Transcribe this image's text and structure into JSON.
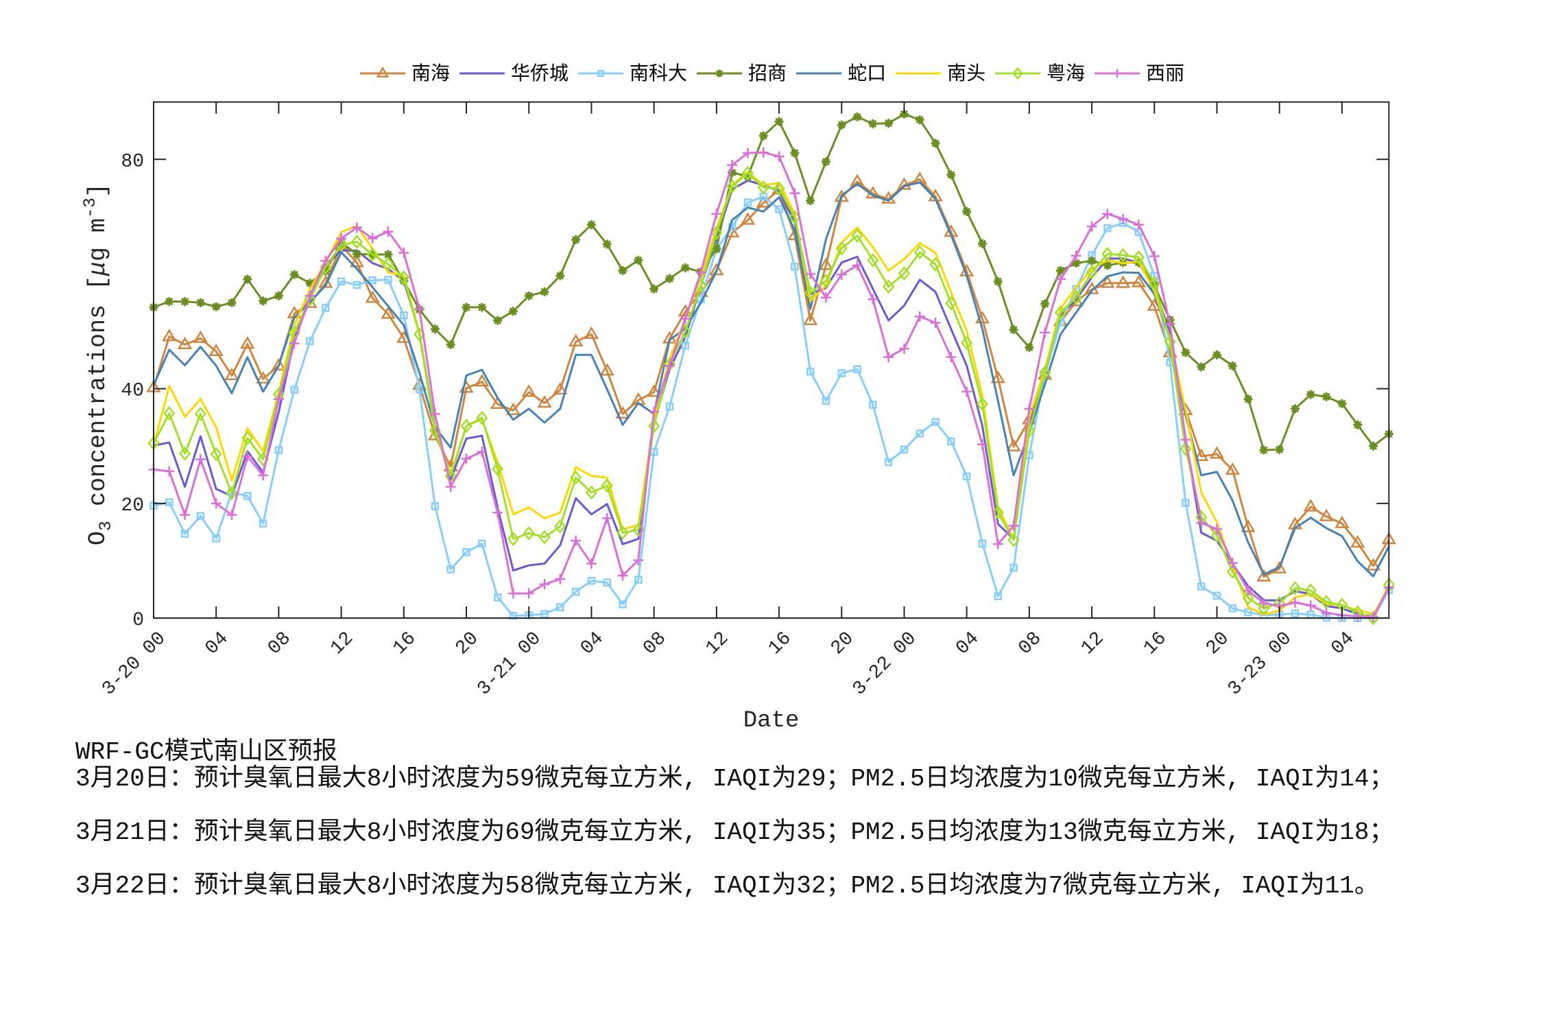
{
  "chart_data": {
    "type": "line",
    "title": "",
    "xlabel": "Date",
    "ylabel": "O3 concentrations [μg m-3]",
    "ylabel_parts": {
      "base": "O",
      "sub": "3",
      "mid": " concentrations [",
      "mu": "μ",
      "unit": "g m",
      "sup": "-3",
      "end": "]"
    },
    "xlim": [
      0,
      79
    ],
    "ylim": [
      0,
      90
    ],
    "grid": false,
    "legend_position": "top, horizontal, outside plot",
    "axis_color": "#262626",
    "xticks": {
      "positions_hours": [
        0,
        4,
        8,
        12,
        16,
        20,
        24,
        28,
        32,
        36,
        40,
        44,
        48,
        52,
        56,
        60,
        64,
        68,
        72,
        76
      ],
      "labels": [
        "3-20 00",
        "04",
        "08",
        "12",
        "16",
        "20",
        "3-21 00",
        "04",
        "08",
        "12",
        "16",
        "20",
        "3-22 00",
        "04",
        "08",
        "12",
        "16",
        "20",
        "3-23 00",
        "04"
      ]
    },
    "yticks": {
      "values": [
        0,
        20,
        40,
        80
      ],
      "labels": [
        "0",
        "20",
        "40",
        "80"
      ]
    },
    "x_hours": [
      0,
      1,
      2,
      3,
      4,
      5,
      6,
      7,
      8,
      9,
      10,
      11,
      12,
      13,
      14,
      15,
      16,
      17,
      18,
      19,
      20,
      21,
      22,
      23,
      24,
      25,
      26,
      27,
      28,
      29,
      30,
      31,
      32,
      33,
      34,
      35,
      36,
      37,
      38,
      39,
      40,
      41,
      42,
      43,
      44,
      45,
      46,
      47,
      48,
      49,
      50,
      51,
      52,
      53,
      54,
      55,
      56,
      57,
      58,
      59,
      60,
      61,
      62,
      63,
      64,
      65,
      66,
      67,
      68,
      69,
      70,
      71,
      72,
      73,
      74,
      75,
      76,
      77,
      78,
      79
    ],
    "x": [
      "3-20 00",
      "3-20 01",
      "3-20 02",
      "3-20 03",
      "3-20 04",
      "3-20 05",
      "3-20 06",
      "3-20 07",
      "3-20 08",
      "3-20 09",
      "3-20 10",
      "3-20 11",
      "3-20 12",
      "3-20 13",
      "3-20 14",
      "3-20 15",
      "3-20 16",
      "3-20 17",
      "3-20 18",
      "3-20 19",
      "3-20 20",
      "3-20 21",
      "3-20 22",
      "3-20 23",
      "3-21 00",
      "3-21 01",
      "3-21 02",
      "3-21 03",
      "3-21 04",
      "3-21 05",
      "3-21 06",
      "3-21 07",
      "3-21 08",
      "3-21 09",
      "3-21 10",
      "3-21 11",
      "3-21 12",
      "3-21 13",
      "3-21 14",
      "3-21 15",
      "3-21 16",
      "3-21 17",
      "3-21 18",
      "3-21 19",
      "3-21 20",
      "3-21 21",
      "3-21 22",
      "3-21 23",
      "3-22 00",
      "3-22 01",
      "3-22 02",
      "3-22 03",
      "3-22 04",
      "3-22 05",
      "3-22 06",
      "3-22 07",
      "3-22 08",
      "3-22 09",
      "3-22 10",
      "3-22 11",
      "3-22 12",
      "3-22 13",
      "3-22 14",
      "3-22 15",
      "3-22 16",
      "3-22 17",
      "3-22 18",
      "3-22 19",
      "3-22 20",
      "3-22 21",
      "3-22 22",
      "3-22 23",
      "3-23 00",
      "3-23 01",
      "3-23 02",
      "3-23 03",
      "3-23 04",
      "3-23 05",
      "3-23 06",
      "3-23 07"
    ],
    "series": [
      {
        "id": "nanhai",
        "name": "南海",
        "color": "#CD853F",
        "marker": "triangle",
        "values": [
          40.2,
          49.1,
          47.7,
          48.8,
          46.5,
          42.3,
          47.8,
          41.7,
          44.0,
          53.1,
          54.9,
          58.4,
          65.0,
          62.0,
          55.8,
          53.0,
          48.8,
          40.6,
          31.8,
          26.4,
          40.1,
          41.2,
          37.3,
          36.2,
          39.4,
          37.5,
          39.8,
          48.2,
          49.5,
          43.1,
          35.6,
          38.0,
          39.4,
          48.7,
          53.4,
          56.8,
          60.6,
          67.2,
          69.4,
          72.4,
          74.7,
          66.7,
          51.9,
          61.5,
          73.4,
          76.1,
          74.0,
          73.1,
          75.5,
          76.5,
          73.5,
          67.3,
          60.4,
          52.2,
          41.8,
          29.9,
          34.6,
          42.4,
          51.7,
          55.2,
          57.3,
          58.4,
          58.4,
          58.5,
          54.4,
          46.3,
          36.2,
          28.2,
          28.6,
          25.8,
          15.8,
          7.2,
          8.6,
          16.3,
          19.4,
          17.7,
          16.5,
          13.1,
          9.1,
          13.7
        ]
      },
      {
        "id": "huaqiaocheng",
        "name": "华侨城",
        "color": "#6A5ACD",
        "marker": "none",
        "values": [
          30.1,
          30.6,
          22.9,
          31.7,
          22.5,
          21.3,
          29.1,
          25.4,
          35.9,
          48.7,
          55.6,
          61.5,
          64.1,
          64.1,
          61.9,
          60.9,
          58.8,
          49.8,
          33.3,
          24.2,
          31.3,
          31.8,
          19.3,
          8.3,
          9.2,
          9.5,
          12.7,
          20.9,
          18.1,
          19.9,
          12.9,
          13.8,
          34.1,
          43.4,
          49.0,
          58.0,
          66.1,
          74.8,
          76.3,
          75.5,
          74.5,
          69.0,
          56.5,
          57.6,
          62.0,
          63.0,
          57.4,
          51.9,
          54.5,
          59.0,
          56.9,
          50.4,
          44.0,
          33.5,
          16.4,
          13.8,
          33.5,
          42.6,
          52.7,
          55.6,
          59.4,
          62.7,
          62.7,
          62.0,
          57.4,
          49.8,
          31.2,
          14.9,
          13.5,
          9.4,
          5.6,
          3.1,
          3.1,
          4.7,
          4.2,
          2.1,
          1.7,
          0.7,
          0.3,
          5.1
        ]
      },
      {
        "id": "nankeda",
        "name": "南科大",
        "color": "#87CEFA",
        "marker": "square",
        "values": [
          19.6,
          20.2,
          14.7,
          17.8,
          13.9,
          21.9,
          21.3,
          16.5,
          29.3,
          39.8,
          48.3,
          54.1,
          58.7,
          58.1,
          58.9,
          59.0,
          52.8,
          39.9,
          19.5,
          8.5,
          11.5,
          13.0,
          3.6,
          0.4,
          0.5,
          0.7,
          1.9,
          4.6,
          6.5,
          6.2,
          2.4,
          6.7,
          29.0,
          36.9,
          47.5,
          55.6,
          64.4,
          68.2,
          72.5,
          73.5,
          71.3,
          61.3,
          43.0,
          37.9,
          42.7,
          43.4,
          37.2,
          27.2,
          29.4,
          32.2,
          34.2,
          30.8,
          24.7,
          13.0,
          3.8,
          8.8,
          28.4,
          42.6,
          51.6,
          57.4,
          63.3,
          68.0,
          68.9,
          67.3,
          59.7,
          44.6,
          20.1,
          5.5,
          3.9,
          1.7,
          1.0,
          0.5,
          0.6,
          0.8,
          0.6,
          0.1,
          0.0,
          0.0,
          0.0,
          4.9
        ]
      },
      {
        "id": "zhaoshang",
        "name": "招商",
        "color": "#6B8E23",
        "marker": "asterisk",
        "values": [
          54.2,
          55.2,
          55.2,
          55.0,
          54.3,
          55.0,
          59.1,
          55.3,
          56.2,
          59.9,
          58.4,
          60.5,
          65.5,
          63.5,
          63.4,
          63.4,
          58.8,
          53.8,
          50.4,
          47.7,
          54.2,
          54.2,
          51.9,
          53.5,
          56.2,
          56.9,
          59.7,
          66.0,
          68.6,
          65.2,
          60.6,
          62.4,
          57.4,
          59.2,
          61.1,
          60.4,
          64.4,
          77.7,
          77.0,
          84.1,
          86.6,
          81.1,
          72.8,
          79.6,
          86.0,
          87.4,
          86.2,
          86.3,
          87.9,
          86.9,
          82.8,
          77.3,
          70.9,
          65.3,
          58.7,
          50.3,
          47.2,
          54.8,
          60.6,
          61.9,
          62.3,
          61.5,
          62.0,
          62.0,
          58.0,
          52.0,
          46.3,
          43.8,
          45.9,
          44.0,
          38.2,
          29.3,
          29.4,
          36.5,
          39.0,
          38.6,
          37.4,
          33.7,
          30.0,
          32.1
        ]
      },
      {
        "id": "shekou",
        "name": "蛇口",
        "color": "#4682B4",
        "marker": "none",
        "values": [
          40.6,
          46.8,
          44.1,
          47.3,
          44.0,
          39.2,
          45.5,
          39.5,
          44.0,
          52.4,
          55.1,
          58.0,
          63.8,
          60.9,
          57.7,
          54.4,
          51.1,
          42.8,
          33.3,
          29.7,
          42.3,
          43.3,
          38.4,
          34.6,
          36.5,
          34.1,
          36.5,
          45.9,
          45.9,
          39.9,
          33.7,
          37.5,
          35.6,
          48.5,
          50.5,
          55.0,
          60.5,
          69.4,
          71.6,
          70.9,
          73.4,
          67.6,
          53.9,
          66.1,
          73.7,
          75.7,
          73.7,
          72.8,
          75.3,
          76.0,
          73.1,
          66.8,
          59.7,
          50.4,
          37.9,
          24.9,
          32.4,
          40.8,
          49.5,
          53.3,
          57.1,
          59.6,
          60.3,
          60.2,
          56.5,
          48.7,
          35.3,
          24.9,
          25.5,
          20.5,
          13.2,
          7.6,
          8.9,
          15.7,
          17.5,
          15.7,
          14.3,
          9.9,
          7.3,
          12.5
        ]
      },
      {
        "id": "nantou",
        "name": "南头",
        "color": "#FFD700",
        "marker": "none",
        "values": [
          30.1,
          40.5,
          35.1,
          38.2,
          33.3,
          24.0,
          33.1,
          29.1,
          39.4,
          51.0,
          57.4,
          62.0,
          67.3,
          68.4,
          64.4,
          60.3,
          59.7,
          49.8,
          32.8,
          25.1,
          33.5,
          34.7,
          27.2,
          18.1,
          19.3,
          17.4,
          18.4,
          26.3,
          24.8,
          24.5,
          15.5,
          16.2,
          34.7,
          45.2,
          52.2,
          59.5,
          68.0,
          75.5,
          77.8,
          75.5,
          75.9,
          70.5,
          55.3,
          58.0,
          65.5,
          68.1,
          64.7,
          60.6,
          62.6,
          65.4,
          63.7,
          56.8,
          50.1,
          38.8,
          19.3,
          13.8,
          35.0,
          43.4,
          54.0,
          57.7,
          60.9,
          62.4,
          61.9,
          62.2,
          57.1,
          48.7,
          36.2,
          21.9,
          16.7,
          9.1,
          1.9,
          0.6,
          1.3,
          3.6,
          4.2,
          2.5,
          2.2,
          1.4,
          0.7,
          5.1
        ]
      },
      {
        "id": "yuehai",
        "name": "粤海",
        "color": "#A2DE2A",
        "marker": "diamond",
        "values": [
          30.5,
          35.7,
          28.7,
          35.6,
          28.6,
          21.8,
          31.4,
          27.7,
          39.0,
          49.8,
          55.6,
          61.2,
          65.1,
          65.6,
          63.4,
          61.7,
          59.4,
          49.5,
          32.7,
          24.8,
          33.5,
          34.9,
          26.0,
          13.8,
          14.8,
          14.1,
          16.0,
          24.5,
          21.9,
          23.1,
          14.9,
          15.4,
          33.5,
          44.3,
          50.0,
          58.0,
          67.2,
          75.3,
          77.6,
          75.1,
          74.9,
          69.9,
          56.7,
          58.8,
          64.5,
          66.7,
          62.4,
          57.8,
          60.1,
          63.8,
          61.7,
          54.9,
          48.0,
          37.3,
          18.4,
          13.6,
          32.7,
          42.8,
          53.3,
          55.9,
          60.3,
          63.5,
          63.3,
          62.9,
          58.4,
          48.2,
          29.5,
          17.6,
          14.4,
          8.1,
          3.5,
          1.7,
          2.6,
          5.2,
          4.8,
          2.8,
          2.3,
          1.0,
          0.0,
          5.8
        ]
      },
      {
        "id": "xili",
        "name": "西丽",
        "color": "#DA70D6",
        "marker": "plus",
        "values": [
          25.9,
          25.6,
          18.0,
          27.7,
          20.0,
          18.0,
          28.2,
          24.9,
          38.2,
          47.9,
          56.2,
          62.3,
          66.2,
          68.1,
          66.2,
          67.4,
          63.7,
          53.9,
          35.6,
          22.9,
          27.8,
          29.0,
          18.4,
          4.3,
          4.3,
          5.9,
          6.8,
          13.5,
          9.5,
          17.4,
          7.4,
          10.1,
          36.0,
          44.0,
          52.2,
          60.3,
          70.5,
          79.0,
          81.1,
          81.2,
          80.5,
          74.1,
          60.0,
          55.9,
          59.9,
          61.5,
          55.6,
          45.5,
          47.0,
          52.6,
          51.5,
          45.5,
          39.5,
          30.3,
          12.9,
          16.1,
          36.5,
          49.8,
          59.1,
          63.2,
          68.3,
          70.5,
          69.6,
          68.6,
          63.1,
          51.3,
          31.1,
          16.6,
          15.5,
          9.6,
          4.8,
          2.6,
          2.1,
          2.7,
          2.2,
          0.9,
          0.5,
          0.3,
          0.2,
          5.3
        ]
      }
    ]
  },
  "forecast": {
    "title": "WRF-GC模式南山区预报",
    "lines": [
      "3月20日：预计臭氧日最大8小时浓度为59微克每立方米, IAQI为29；PM2.5日均浓度为10微克每立方米, IAQI为14；",
      "3月21日：预计臭氧日最大8小时浓度为69微克每立方米, IAQI为35；PM2.5日均浓度为13微克每立方米, IAQI为18；",
      "3月22日：预计臭氧日最大8小时浓度为58微克每立方米, IAQI为32；PM2.5日均浓度为7微克每立方米, IAQI为11。"
    ]
  }
}
